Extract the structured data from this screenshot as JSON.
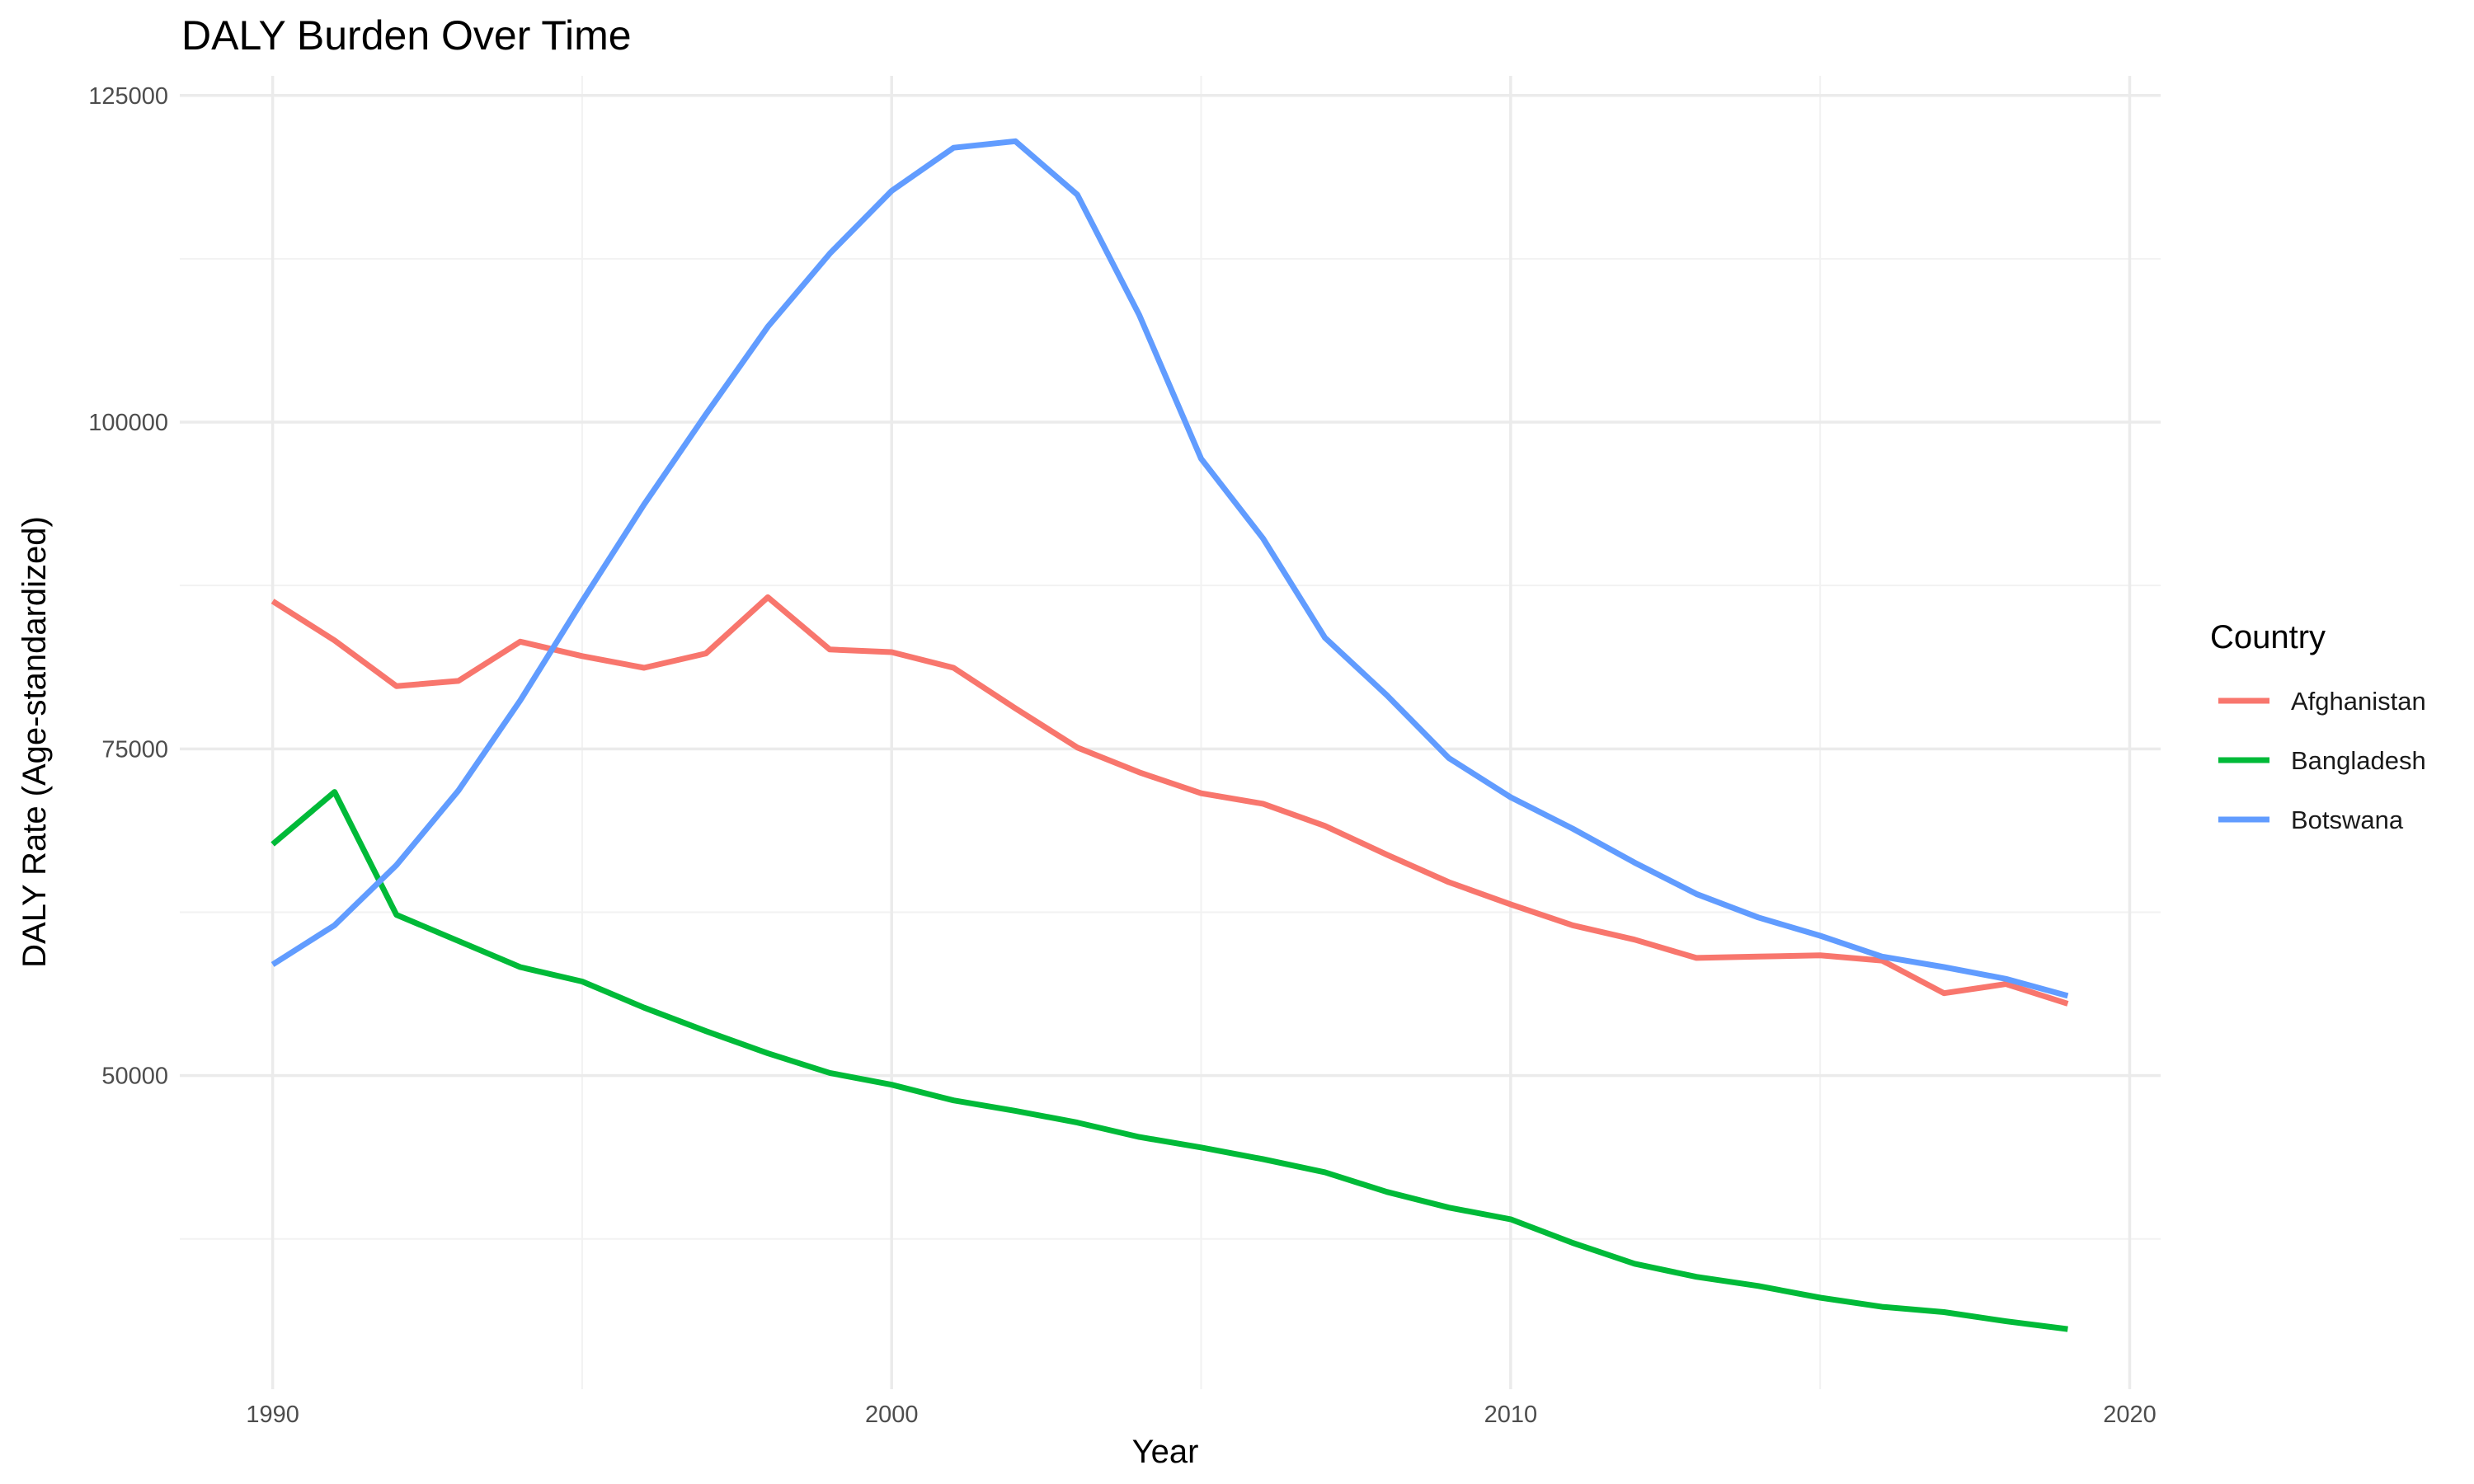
{
  "chart_data": {
    "type": "line",
    "title": "DALY Burden Over Time",
    "xlabel": "Year",
    "ylabel": "DALY Rate (Age-standardized)",
    "x": [
      1990,
      1991,
      1992,
      1993,
      1994,
      1995,
      1996,
      1997,
      1998,
      1999,
      2000,
      2001,
      2002,
      2003,
      2004,
      2005,
      2006,
      2007,
      2008,
      2009,
      2010,
      2011,
      2012,
      2013,
      2014,
      2015,
      2016,
      2017,
      2018,
      2019
    ],
    "xlim": [
      1988.5,
      2020.5
    ],
    "ylim": [
      26000,
      126500
    ],
    "x_ticks": [
      1990,
      2000,
      2010,
      2020
    ],
    "x_minor_ticks": [
      1995,
      2005,
      2015
    ],
    "y_ticks": [
      50000,
      75000,
      100000,
      125000
    ],
    "y_minor_ticks": [
      37500,
      62500,
      87500,
      112500
    ],
    "grid": true,
    "legend": {
      "title": "Country",
      "position": "right"
    },
    "series": [
      {
        "name": "Afghanistan",
        "color": "#F8766D",
        "values": [
          86300,
          83300,
          79800,
          80200,
          83200,
          82100,
          81200,
          82300,
          86600,
          82600,
          82400,
          81200,
          78100,
          75100,
          73200,
          71600,
          70800,
          69100,
          66900,
          64800,
          63100,
          61500,
          60400,
          59000,
          59100,
          59200,
          58800,
          56300,
          57000,
          55500
        ]
      },
      {
        "name": "Bangladesh",
        "color": "#00BA38",
        "values": [
          67700,
          71700,
          62300,
          60300,
          58300,
          57200,
          55200,
          53400,
          51700,
          50200,
          49300,
          48100,
          47300,
          46400,
          45300,
          44500,
          43600,
          42600,
          41100,
          39900,
          39000,
          37200,
          35600,
          34600,
          33900,
          33000,
          32300,
          31900,
          31200,
          30600
        ]
      },
      {
        "name": "Botswana",
        "color": "#619CFF",
        "values": [
          58500,
          61500,
          66100,
          71800,
          78700,
          86300,
          93700,
          100600,
          107300,
          112900,
          117700,
          121000,
          121500,
          117400,
          108200,
          97200,
          91100,
          83500,
          79100,
          74300,
          71300,
          68900,
          66300,
          63900,
          62100,
          60700,
          59100,
          58300,
          57400,
          56100
        ]
      }
    ]
  }
}
